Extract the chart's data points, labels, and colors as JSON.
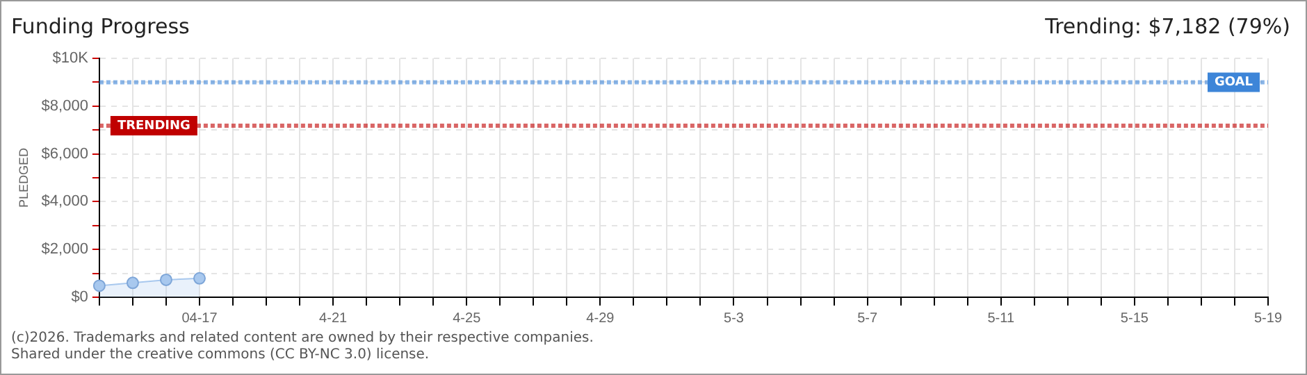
{
  "chart_data": {
    "type": "area",
    "title": "Funding Progress",
    "ylabel": "PLEDGED",
    "categories": [
      null,
      null,
      null,
      "04-17",
      null,
      null,
      null,
      "4-21",
      null,
      null,
      null,
      "4-25",
      null,
      null,
      null,
      "4-29",
      null,
      null,
      null,
      "5-3",
      null,
      null,
      null,
      "5-7",
      null,
      null,
      null,
      "5-11",
      null,
      null,
      null,
      "5-15",
      null,
      null,
      null,
      "5-19"
    ],
    "series": [
      {
        "color": "#a8c8ee",
        "values": [
          480,
          600,
          730,
          790,
          null,
          null,
          null,
          null,
          null,
          null,
          null,
          null,
          null,
          null,
          null,
          null,
          null,
          null,
          null,
          null,
          null,
          null,
          null,
          null,
          null,
          null,
          null,
          null,
          null,
          null,
          null,
          null,
          null,
          null,
          null,
          null
        ]
      }
    ],
    "ylim": [
      0,
      10000
    ],
    "yticks": [
      {
        "value": 0,
        "label": "$0"
      },
      {
        "value": 1000,
        "label": null
      },
      {
        "value": 2000,
        "label": "$2,000"
      },
      {
        "value": 3000,
        "label": null
      },
      {
        "value": 4000,
        "label": "$4,000"
      },
      {
        "value": 5000,
        "label": null
      },
      {
        "value": 6000,
        "label": "$6,000"
      },
      {
        "value": 7000,
        "label": null
      },
      {
        "value": 8000,
        "label": "$8,000"
      },
      {
        "value": 9000,
        "label": null
      },
      {
        "value": 10000,
        "label": "$10K"
      }
    ],
    "ref_lines": [
      {
        "axis": "y",
        "value": 9000,
        "label": "GOAL",
        "color": "#3d85d8",
        "line_style": "dotted"
      },
      {
        "axis": "y",
        "value": 7182,
        "label": "TRENDING",
        "color": "#c00000",
        "line_style": "dotted"
      }
    ],
    "annotations": [
      "Trending: $7,182 (79%)",
      "(c)2026. Trademarks and related content are owned by their respective companies.",
      "Shared under the creative commons (CC BY-NC 3.0) license."
    ],
    "grid": true,
    "legend": false,
    "marker": "circle"
  }
}
